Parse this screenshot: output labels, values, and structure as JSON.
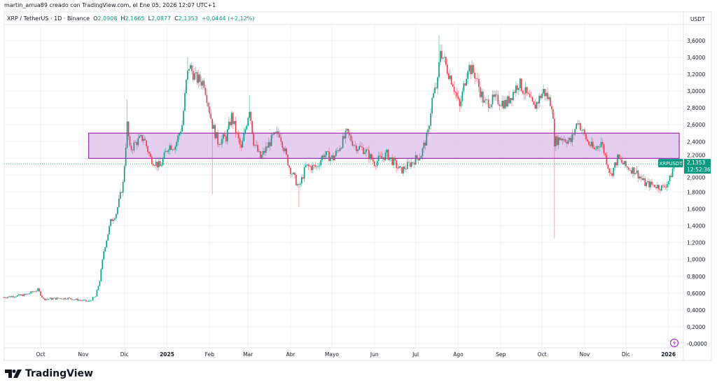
{
  "credit": "martin_arrua89 creado con TradingView.com, el Ene 05, 2026 12:07 UTC+1",
  "legend": {
    "symbol": "XRP / TetherUS · 1D · Binance",
    "o_label": "O",
    "o": "2,0908",
    "h_label": "H",
    "h": "2,1665",
    "l_label": "L",
    "l": "2,0877",
    "c_label": "C",
    "c": "2,1353",
    "change": "+0,0444 (+2,12%)"
  },
  "brand": "TradingView",
  "colors": {
    "up": "#089981",
    "down": "#f23645",
    "zone_fill": "#e1c6ec",
    "zone_border": "#9c27b0",
    "price_tag": "#089981",
    "lightning": "#b02fd1"
  },
  "icons": {
    "lightning": "lightning-icon",
    "logo": "tradingview-logo-icon"
  },
  "chart_data": {
    "type": "candlestick",
    "symbol_tag": "XRPUSDT",
    "currency_label": "USDT",
    "last_price": 2.1353,
    "last_price_label": "2,1353",
    "countdown": "12:52:36",
    "ylim": [
      0,
      3.7
    ],
    "y_ticks": [
      0,
      0.2,
      0.4,
      0.6,
      0.8,
      1.0,
      1.2,
      1.4,
      1.6,
      1.8,
      2.0,
      2.2,
      2.4,
      2.6,
      2.8,
      3.0,
      3.2,
      3.4,
      3.6
    ],
    "y_tick_labels": [
      "-0,0000",
      "0,2000",
      "0,4000",
      "0,6000",
      "0,8000",
      "1,0000",
      "1,2000",
      "1,4000",
      "1,6000",
      "1,8000",
      "2,0000",
      "2,2000",
      "2,4000",
      "2,6000",
      "2,8000",
      "3,0000",
      "3,2000",
      "3,4000",
      "3,6000"
    ],
    "x_ticks": [
      {
        "date": "2024-10-01",
        "label": "Oct"
      },
      {
        "date": "2024-11-01",
        "label": "Nov"
      },
      {
        "date": "2024-12-01",
        "label": "Dic"
      },
      {
        "date": "2025-01-01",
        "label": "2025"
      },
      {
        "date": "2025-02-01",
        "label": "Feb"
      },
      {
        "date": "2025-03-01",
        "label": "Mar"
      },
      {
        "date": "2025-04-01",
        "label": "Abr"
      },
      {
        "date": "2025-05-01",
        "label": "Mayo"
      },
      {
        "date": "2025-06-01",
        "label": "Jun"
      },
      {
        "date": "2025-07-01",
        "label": "Jul"
      },
      {
        "date": "2025-08-01",
        "label": "Ago"
      },
      {
        "date": "2025-09-01",
        "label": "Sep"
      },
      {
        "date": "2025-10-01",
        "label": "Oct"
      },
      {
        "date": "2025-11-01",
        "label": "Nov"
      },
      {
        "date": "2025-12-01",
        "label": "Dic"
      },
      {
        "date": "2026-01-01",
        "label": "2026"
      }
    ],
    "zone": {
      "from": "2024-11-05",
      "to": "2026-01-09",
      "low": 2.2,
      "high": 2.5
    },
    "grid": true,
    "closes": [
      [
        "2024-09-04",
        0.55
      ],
      [
        "2024-09-20",
        0.58
      ],
      [
        "2024-09-29",
        0.64
      ],
      [
        "2024-10-03",
        0.53
      ],
      [
        "2024-10-20",
        0.54
      ],
      [
        "2024-11-05",
        0.5
      ],
      [
        "2024-11-10",
        0.56
      ],
      [
        "2024-11-13",
        0.75
      ],
      [
        "2024-11-16",
        1.1
      ],
      [
        "2024-11-21",
        1.45
      ],
      [
        "2024-11-25",
        1.55
      ],
      [
        "2024-11-30",
        1.9
      ],
      [
        "2024-12-03",
        2.6
      ],
      [
        "2024-12-05",
        2.3
      ],
      [
        "2024-12-10",
        2.4
      ],
      [
        "2024-12-15",
        2.45
      ],
      [
        "2024-12-20",
        2.2
      ],
      [
        "2024-12-27",
        2.1
      ],
      [
        "2025-01-02",
        2.35
      ],
      [
        "2025-01-07",
        2.35
      ],
      [
        "2025-01-12",
        2.6
      ],
      [
        "2025-01-15",
        3.1
      ],
      [
        "2025-01-17",
        3.3
      ],
      [
        "2025-01-22",
        3.15
      ],
      [
        "2025-01-28",
        3.1
      ],
      [
        "2025-02-03",
        2.6
      ],
      [
        "2025-02-07",
        2.4
      ],
      [
        "2025-02-13",
        2.45
      ],
      [
        "2025-02-17",
        2.7
      ],
      [
        "2025-02-24",
        2.3
      ],
      [
        "2025-03-02",
        2.8
      ],
      [
        "2025-03-05",
        2.4
      ],
      [
        "2025-03-10",
        2.2
      ],
      [
        "2025-03-19",
        2.45
      ],
      [
        "2025-03-24",
        2.5
      ],
      [
        "2025-03-31",
        2.1
      ],
      [
        "2025-04-07",
        1.85
      ],
      [
        "2025-04-12",
        2.1
      ],
      [
        "2025-04-20",
        2.1
      ],
      [
        "2025-04-25",
        2.25
      ],
      [
        "2025-05-02",
        2.2
      ],
      [
        "2025-05-12",
        2.5
      ],
      [
        "2025-05-18",
        2.35
      ],
      [
        "2025-05-25",
        2.3
      ],
      [
        "2025-06-01",
        2.15
      ],
      [
        "2025-06-10",
        2.25
      ],
      [
        "2025-06-20",
        2.05
      ],
      [
        "2025-06-28",
        2.15
      ],
      [
        "2025-07-05",
        2.25
      ],
      [
        "2025-07-10",
        2.5
      ],
      [
        "2025-07-13",
        2.9
      ],
      [
        "2025-07-17",
        3.1
      ],
      [
        "2025-07-19",
        3.5
      ],
      [
        "2025-07-23",
        3.3
      ],
      [
        "2025-07-28",
        3.1
      ],
      [
        "2025-08-02",
        2.8
      ],
      [
        "2025-08-08",
        3.3
      ],
      [
        "2025-08-13",
        3.2
      ],
      [
        "2025-08-20",
        2.85
      ],
      [
        "2025-08-28",
        2.9
      ],
      [
        "2025-09-05",
        2.85
      ],
      [
        "2025-09-14",
        3.1
      ],
      [
        "2025-09-20",
        2.95
      ],
      [
        "2025-09-25",
        2.8
      ],
      [
        "2025-10-02",
        3.0
      ],
      [
        "2025-10-08",
        2.85
      ],
      [
        "2025-10-10",
        2.4
      ],
      [
        "2025-10-15",
        2.45
      ],
      [
        "2025-10-22",
        2.4
      ],
      [
        "2025-10-27",
        2.65
      ],
      [
        "2025-11-03",
        2.4
      ],
      [
        "2025-11-08",
        2.3
      ],
      [
        "2025-11-13",
        2.4
      ],
      [
        "2025-11-20",
        2.0
      ],
      [
        "2025-11-25",
        2.2
      ],
      [
        "2025-12-01",
        2.1
      ],
      [
        "2025-12-08",
        2.05
      ],
      [
        "2025-12-15",
        1.9
      ],
      [
        "2025-12-22",
        1.88
      ],
      [
        "2025-12-28",
        1.85
      ],
      [
        "2026-01-02",
        1.95
      ],
      [
        "2026-01-05",
        2.1353
      ]
    ],
    "notable_wicks": [
      {
        "date": "2025-10-10",
        "low": 1.25
      },
      {
        "date": "2025-04-07",
        "low": 1.62
      },
      {
        "date": "2025-02-03",
        "low": 1.77
      },
      {
        "date": "2024-12-03",
        "high": 2.9
      },
      {
        "date": "2025-03-02",
        "high": 2.95
      },
      {
        "date": "2025-07-18",
        "high": 3.66
      },
      {
        "date": "2025-01-16",
        "high": 3.4
      }
    ]
  }
}
